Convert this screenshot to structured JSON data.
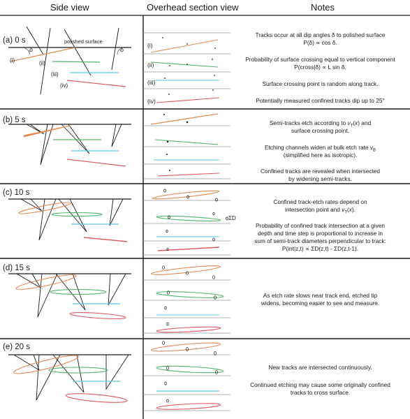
{
  "headers": {
    "side": "Side view",
    "overhead": "Overhead section view",
    "notes": "Notes"
  },
  "panel_a": {
    "label": "(a)  0 s",
    "surface_label": "polished surface",
    "delta": "δ",
    "track_labels": [
      "(i)",
      "(ii)",
      "(iii)",
      "(iv)"
    ],
    "notes": [
      "Tracks occur at all dip angles δ to polished surface",
      "P(δ) ∝ cos δ.",
      "Probability of surface crossing equal to vertical component",
      "P(cross|δ) ∝ L sin δ.",
      "Surface crossing point is random along track.",
      "Potentially measured confined tracks dip up to 25°"
    ]
  },
  "panel_b": {
    "label": "(b)  5 s",
    "notes": [
      "Semi-tracks etch according to vT(x) and",
      "surface crossing point.",
      "Etching channels widen at bulk etch rate vB",
      "(simplified here as isotropic).",
      "Confined tracks are revealed when intersected",
      "by widening semi-tracks."
    ]
  },
  "panel_c": {
    "label": "(c)  10 s",
    "notes": [
      "Confined track-etch rates depend on",
      "intersection point and vT(x).",
      "Probability of confined track intersection at a given",
      "depth and time step is proportional to increase in",
      "sum of semi-track diameters perpendicular to track:",
      "P(int|z,t) ∝ ΣD(z,t) - ΣD(z,t-1)."
    ],
    "sum_label": "ΣD"
  },
  "panel_d": {
    "label": "(d)  15 s",
    "notes": [
      "As etch rate slows near track end, etched tip",
      "widens, becoming easier to see and measure."
    ]
  },
  "panel_e": {
    "label": "(e)  20 s",
    "notes": [
      "New tracks are intersected continuously.",
      "Continued etching may cause some originally confined",
      "tracks to cross surface."
    ]
  },
  "colors": {
    "orange": "#e38a55",
    "green": "#4fb36a",
    "cyan": "#5ec8e0",
    "red": "#e0575d",
    "ink": "#1a1a1a"
  }
}
